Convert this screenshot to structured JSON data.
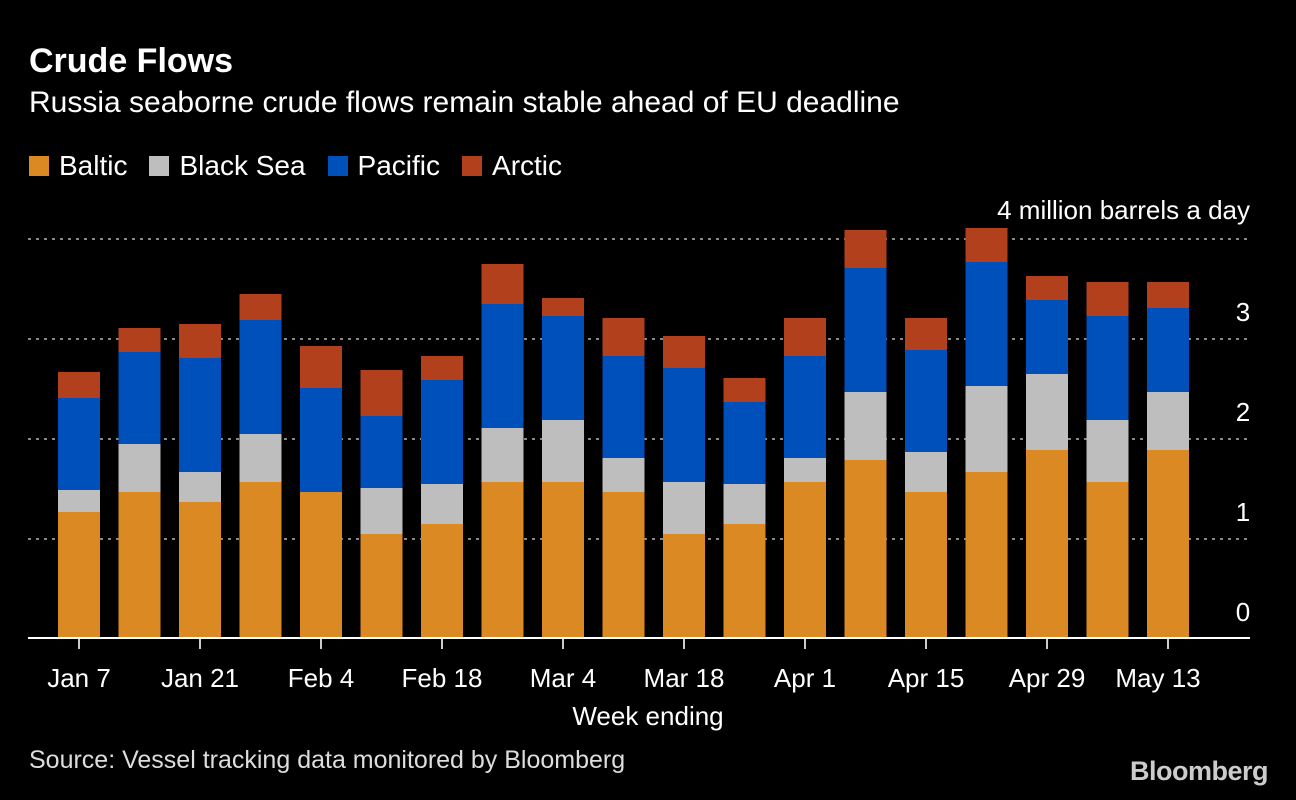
{
  "chart_data": {
    "type": "bar",
    "stacked": true,
    "title": "Crude Flows",
    "subtitle": "Russia seaborne crude flows remain stable ahead of EU deadline",
    "xlabel": "Week ending",
    "ylabel": "4 million barrels a day",
    "ylim": [
      0,
      4
    ],
    "yticks": [
      0,
      1,
      2,
      3
    ],
    "grid": true,
    "legend_position": "top-left",
    "categories": [
      "Jan 7",
      "Jan 14",
      "Jan 21",
      "Jan 28",
      "Feb 4",
      "Feb 11",
      "Feb 18",
      "Feb 25",
      "Mar 4",
      "Mar 11",
      "Mar 18",
      "Mar 25",
      "Apr 1",
      "Apr 8",
      "Apr 15",
      "Apr 22",
      "Apr 29",
      "May 6",
      "May 13"
    ],
    "xtick_labels": [
      "Jan 7",
      "Jan 21",
      "Feb 4",
      "Feb 18",
      "Mar 4",
      "Mar 18",
      "Apr 1",
      "Apr 15",
      "Apr 29",
      "May 13"
    ],
    "series": [
      {
        "name": "Baltic",
        "color": "#DB8A23",
        "values": [
          1.27,
          1.47,
          1.37,
          1.57,
          1.47,
          1.05,
          1.15,
          1.57,
          1.57,
          1.47,
          1.05,
          1.15,
          1.57,
          1.79,
          1.47,
          1.67,
          1.89,
          1.57,
          1.89
        ]
      },
      {
        "name": "Black Sea",
        "color": "#BEBEBE",
        "values": [
          0.22,
          0.48,
          0.3,
          0.48,
          0.0,
          0.46,
          0.4,
          0.54,
          0.62,
          0.34,
          0.52,
          0.4,
          0.24,
          0.68,
          0.4,
          0.86,
          0.76,
          0.62,
          0.58
        ]
      },
      {
        "name": "Pacific",
        "color": "#0050BC",
        "values": [
          0.92,
          0.92,
          1.14,
          1.14,
          1.04,
          0.72,
          1.04,
          1.24,
          1.04,
          1.02,
          1.14,
          0.82,
          1.02,
          1.24,
          1.02,
          1.24,
          0.74,
          1.04,
          0.84
        ]
      },
      {
        "name": "Arctic",
        "color": "#B2401D",
        "values": [
          0.26,
          0.24,
          0.34,
          0.26,
          0.42,
          0.46,
          0.24,
          0.4,
          0.18,
          0.38,
          0.32,
          0.24,
          0.38,
          0.38,
          0.32,
          0.34,
          0.24,
          0.34,
          0.26
        ]
      }
    ]
  },
  "footer": {
    "source": "Source: Vessel tracking data monitored by Bloomberg",
    "logo": "Bloomberg"
  }
}
